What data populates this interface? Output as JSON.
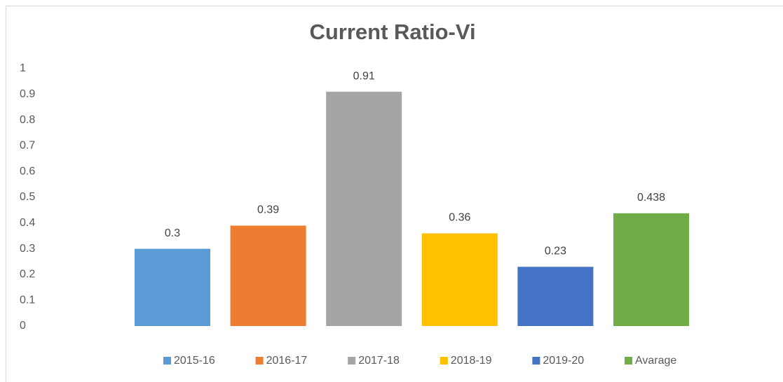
{
  "chart_data": {
    "type": "bar",
    "title": "Current Ratio-Vi",
    "series": [
      {
        "name": "2015-16",
        "color": "#5b9bd5",
        "values": [
          0.3
        ]
      },
      {
        "name": "2016-17",
        "color": "#ed7d31",
        "values": [
          0.39
        ]
      },
      {
        "name": "2017-18",
        "color": "#a5a5a5",
        "values": [
          0.91
        ]
      },
      {
        "name": "2018-19",
        "color": "#ffc000",
        "values": [
          0.36
        ]
      },
      {
        "name": "2019-20",
        "color": "#4472c4",
        "values": [
          0.23
        ]
      },
      {
        "name": "Avarage",
        "color": "#70ad47",
        "values": [
          0.438
        ]
      }
    ],
    "ylim": [
      0,
      1
    ],
    "yticks": [
      0,
      0.1,
      0.2,
      0.3,
      0.4,
      0.5,
      0.6,
      0.7,
      0.8,
      0.9,
      1
    ],
    "grid": false,
    "legend": "bottom"
  }
}
